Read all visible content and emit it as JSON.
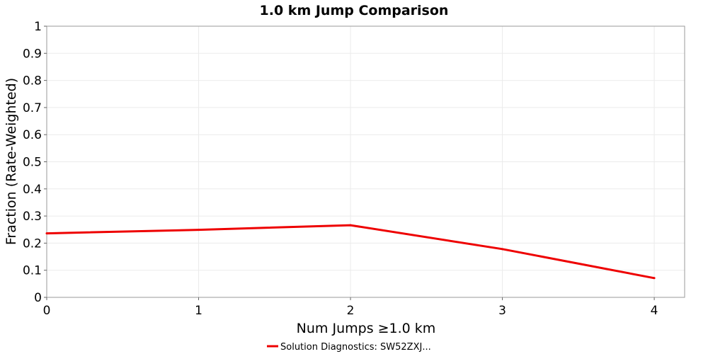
{
  "chart_data": {
    "type": "line",
    "title": "1.0 km Jump Comparison",
    "xlabel": "Num Jumps ≥1.0 km",
    "ylabel": "Fraction (Rate-Weighted)",
    "xlim": [
      0,
      4.2
    ],
    "ylim": [
      0,
      1
    ],
    "x_ticks": [
      "0",
      "1",
      "2",
      "3",
      "4"
    ],
    "y_ticks": [
      "0",
      "0.1",
      "0.2",
      "0.3",
      "0.4",
      "0.5",
      "0.6",
      "0.7",
      "0.8",
      "0.9",
      "1"
    ],
    "grid": true,
    "legend_position": "bottom-center",
    "series": [
      {
        "name": "Solution Diagnostics: SW52ZXJ...",
        "color": "#ee0000",
        "x": [
          0,
          1,
          2,
          3,
          4
        ],
        "values": [
          0.236,
          0.249,
          0.266,
          0.178,
          0.071
        ]
      }
    ]
  }
}
